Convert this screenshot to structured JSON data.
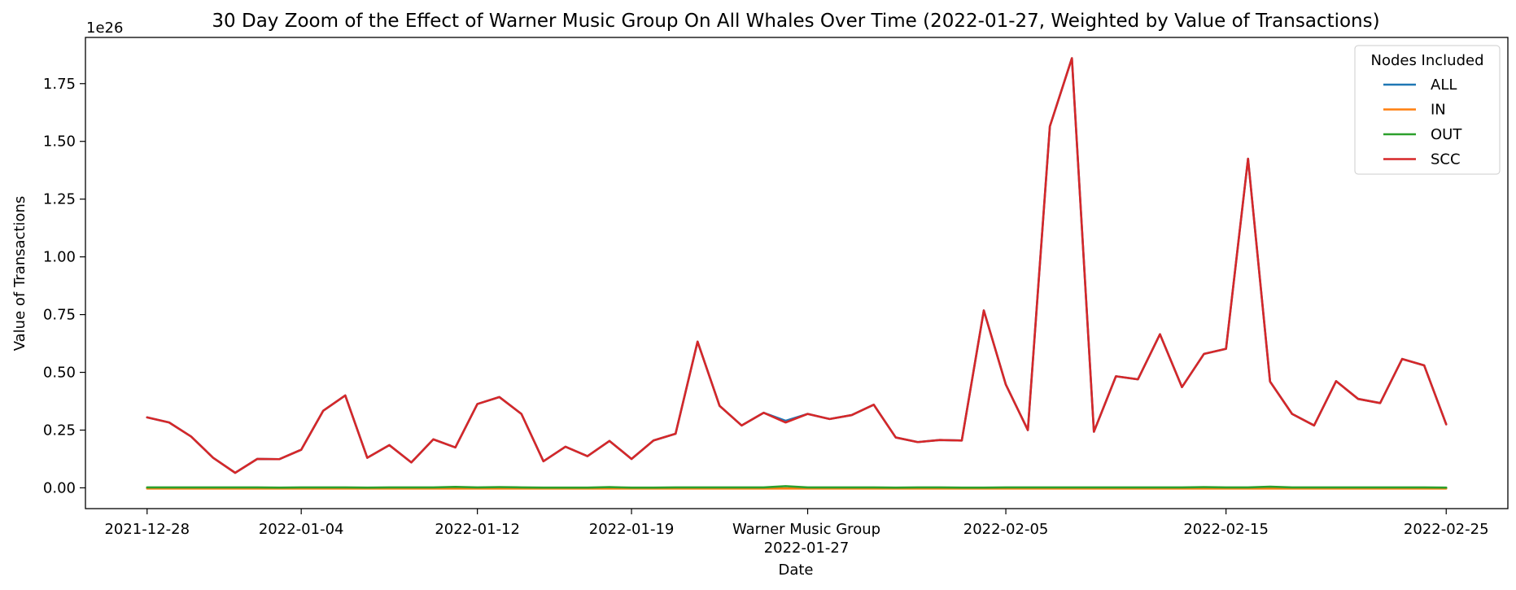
{
  "chart_data": {
    "type": "line",
    "title": "30 Day Zoom of the Effect of Warner Music Group On All Whales Over Time (2022-01-27, Weighted by Value of Transactions)",
    "xlabel": "Date",
    "ylabel": "Value of Transactions",
    "y_multiplier": "1e26",
    "ylim": [
      -0.09,
      1.95
    ],
    "y_ticks": [
      "0.00",
      "0.25",
      "0.50",
      "0.75",
      "1.00",
      "1.25",
      "1.50",
      "1.75"
    ],
    "x_tick_labels": [
      "2021-12-28",
      "2022-01-04",
      "2022-01-12",
      "2022-01-19",
      "2022-01-27",
      "2022-02-05",
      "2022-02-15",
      "2022-02-25"
    ],
    "x_tick_positions": [
      0,
      7,
      15,
      22,
      30,
      39,
      49,
      59
    ],
    "xlim": [
      -2.8,
      61.8
    ],
    "event_label": "Warner Music Group",
    "event_date": "2022-01-27",
    "legend": {
      "title": "Nodes Included",
      "placement": "upper right",
      "entries": [
        {
          "name": "ALL",
          "color": "#1f77b4"
        },
        {
          "name": "IN",
          "color": "#ff7f0e"
        },
        {
          "name": "OUT",
          "color": "#2ca02c"
        },
        {
          "name": "SCC",
          "color": "#d62728"
        }
      ]
    },
    "x": [
      0,
      1,
      2,
      3,
      4,
      5,
      6,
      7,
      8,
      9,
      10,
      11,
      12,
      13,
      14,
      15,
      16,
      17,
      18,
      19,
      20,
      21,
      22,
      23,
      24,
      25,
      26,
      27,
      28,
      29,
      30,
      31,
      32,
      33,
      34,
      35,
      36,
      37,
      38,
      39,
      40,
      41,
      42,
      43,
      44,
      45,
      46,
      47,
      48,
      49,
      50,
      51,
      52,
      53,
      54,
      55,
      56,
      57,
      58,
      59
    ],
    "series": [
      {
        "name": "ALL",
        "color": "#1f77b4",
        "values": [
          0.305,
          0.283,
          0.222,
          0.13,
          0.065,
          0.125,
          0.124,
          0.165,
          0.334,
          0.4,
          0.13,
          0.185,
          0.11,
          0.21,
          0.175,
          0.363,
          0.393,
          0.32,
          0.115,
          0.178,
          0.137,
          0.203,
          0.125,
          0.205,
          0.234,
          0.633,
          0.355,
          0.27,
          0.325,
          0.29,
          0.32,
          0.298,
          0.315,
          0.36,
          0.218,
          0.198,
          0.207,
          0.205,
          0.768,
          0.447,
          0.25,
          1.565,
          1.86,
          0.243,
          0.483,
          0.47,
          0.665,
          0.436,
          0.58,
          0.602,
          1.425,
          0.46,
          0.32,
          0.27,
          0.462,
          0.385,
          0.367,
          0.558,
          0.53,
          0.275
        ]
      },
      {
        "name": "IN",
        "color": "#ff7f0e",
        "values": [
          -0.003,
          -0.003,
          -0.003,
          -0.003,
          -0.003,
          -0.003,
          -0.003,
          -0.003,
          -0.003,
          -0.003,
          -0.003,
          -0.003,
          -0.003,
          -0.003,
          -0.003,
          -0.003,
          -0.003,
          -0.003,
          -0.003,
          -0.003,
          -0.003,
          -0.003,
          -0.003,
          -0.003,
          -0.003,
          -0.003,
          -0.003,
          -0.003,
          -0.003,
          -0.003,
          -0.003,
          -0.003,
          -0.003,
          -0.003,
          -0.003,
          -0.003,
          -0.003,
          -0.003,
          -0.003,
          -0.003,
          -0.003,
          -0.003,
          -0.003,
          -0.003,
          -0.003,
          -0.003,
          -0.003,
          -0.003,
          -0.003,
          -0.003,
          -0.003,
          -0.003,
          -0.003,
          -0.003,
          -0.003,
          -0.003,
          -0.003,
          -0.003,
          -0.003,
          -0.003
        ]
      },
      {
        "name": "OUT",
        "color": "#2ca02c",
        "values": [
          0.002,
          0.002,
          0.002,
          0.002,
          0.002,
          0.002,
          0.001,
          0.002,
          0.002,
          0.002,
          0.001,
          0.002,
          0.002,
          0.002,
          0.004,
          0.002,
          0.003,
          0.002,
          0.001,
          0.001,
          0.001,
          0.003,
          0.001,
          0.001,
          0.002,
          0.002,
          0.002,
          0.002,
          0.002,
          0.007,
          0.002,
          0.002,
          0.002,
          0.002,
          0.001,
          0.002,
          0.002,
          0.001,
          0.001,
          0.002,
          0.002,
          0.002,
          0.002,
          0.002,
          0.002,
          0.002,
          0.002,
          0.002,
          0.003,
          0.002,
          0.002,
          0.005,
          0.002,
          0.002,
          0.002,
          0.002,
          0.002,
          0.002,
          0.002,
          0.001
        ]
      },
      {
        "name": "SCC",
        "color": "#d62728",
        "values": [
          0.305,
          0.283,
          0.222,
          0.13,
          0.065,
          0.125,
          0.124,
          0.165,
          0.334,
          0.4,
          0.13,
          0.185,
          0.11,
          0.21,
          0.175,
          0.363,
          0.393,
          0.32,
          0.115,
          0.178,
          0.137,
          0.203,
          0.125,
          0.205,
          0.234,
          0.633,
          0.355,
          0.27,
          0.325,
          0.283,
          0.32,
          0.298,
          0.315,
          0.36,
          0.218,
          0.198,
          0.207,
          0.205,
          0.768,
          0.447,
          0.25,
          1.565,
          1.86,
          0.243,
          0.483,
          0.47,
          0.665,
          0.436,
          0.58,
          0.602,
          1.425,
          0.46,
          0.32,
          0.27,
          0.462,
          0.385,
          0.367,
          0.558,
          0.53,
          0.275
        ]
      }
    ]
  }
}
